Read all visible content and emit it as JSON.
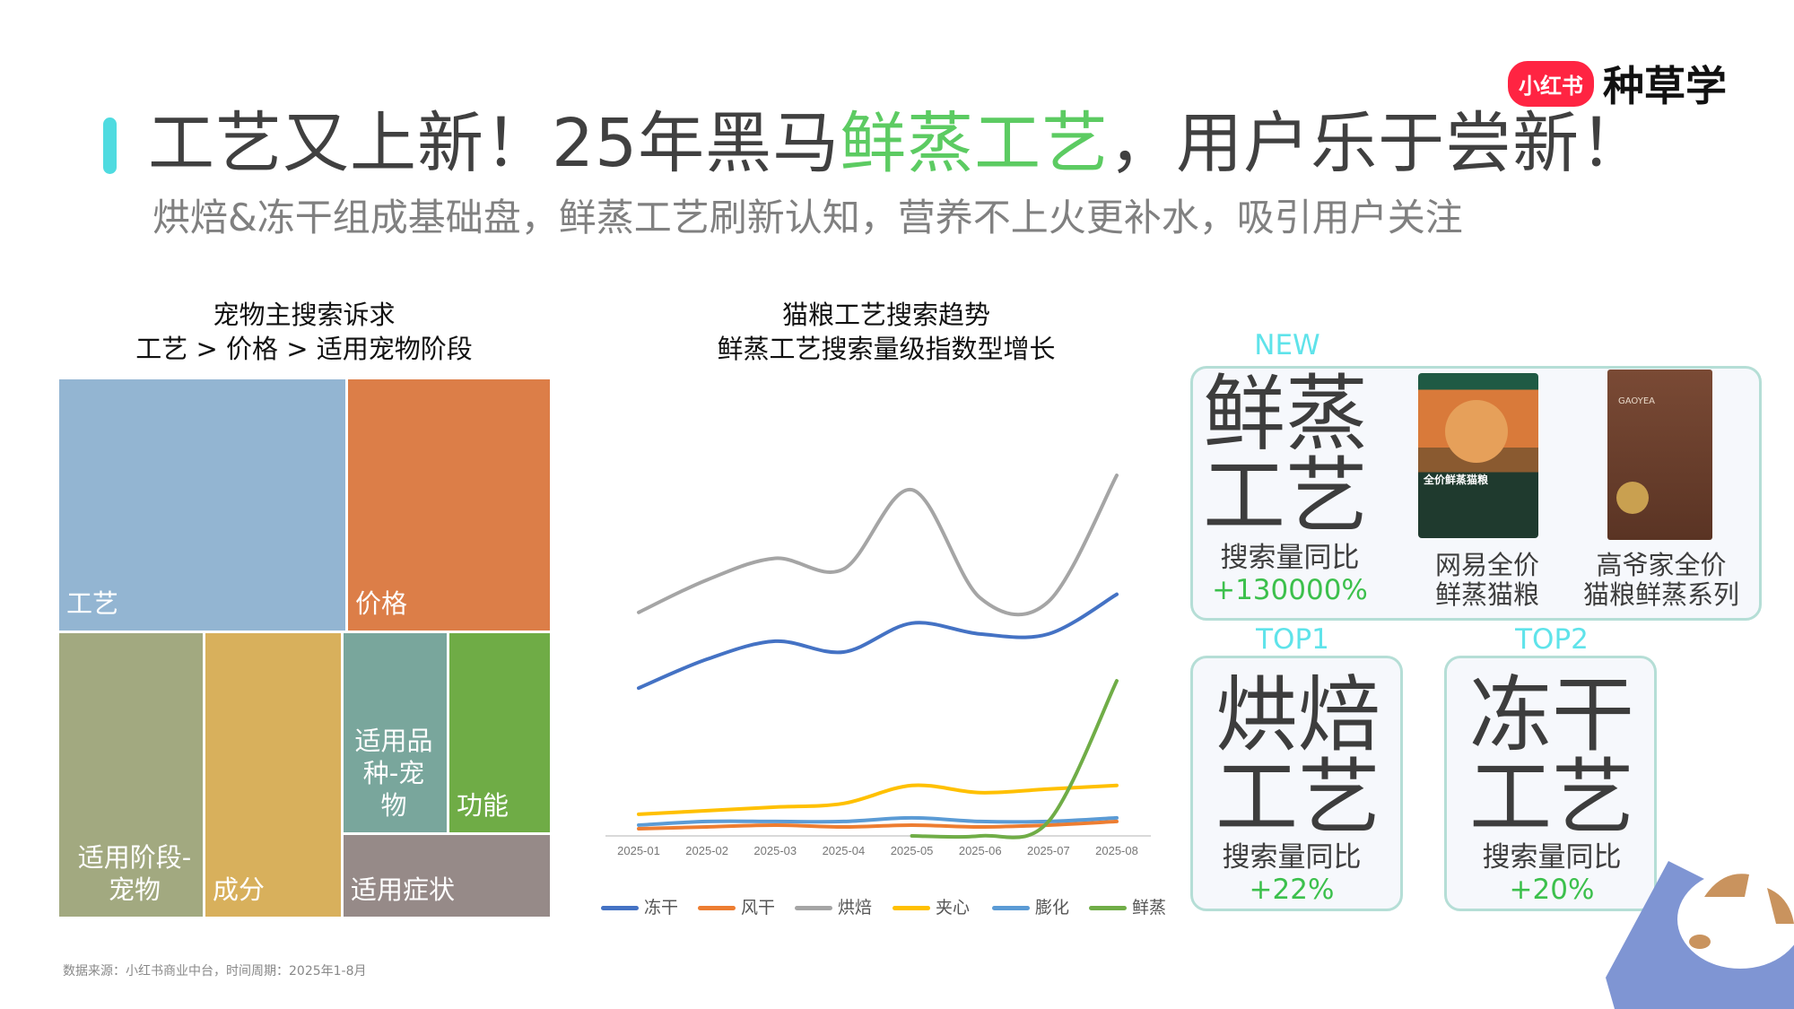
{
  "header": {
    "title_pre": "工艺又上新！25年黑马",
    "title_highlight": "鲜蒸工艺",
    "title_post": "，用户乐于尝新！",
    "subtitle": "烘焙&冻干组成基础盘，鲜蒸工艺刷新认知，营养不上火更补水，吸引用户关注",
    "accent_color": "#4fdbe0",
    "highlight_color": "#5ccb62"
  },
  "logo": {
    "pill": "小红书",
    "text": "种草学"
  },
  "treemap": {
    "title_line1": "宠物主搜索诉求",
    "title_line2": "工艺 > 价格 > 适用宠物阶段"
  },
  "linechart": {
    "title_line1": "猫粮工艺搜索趋势",
    "title_line2": "鲜蒸工艺搜索量级指数型增长"
  },
  "chart_data": [
    {
      "type": "treemap",
      "title": "宠物主搜索诉求",
      "categories": [
        "工艺",
        "价格",
        "适用阶段-宠物",
        "成分",
        "适用品种-宠物",
        "功能",
        "适用症状"
      ],
      "values": [
        27.6,
        19.6,
        15.8,
        14.8,
        7.9,
        7.7,
        6.6
      ],
      "colors": [
        "#93b5d2",
        "#dc7e48",
        "#a2a980",
        "#d8b05c",
        "#79a69c",
        "#6fac46",
        "#968a88"
      ]
    },
    {
      "type": "line",
      "title": "猫粮工艺搜索趋势",
      "x": [
        "2025-01",
        "2025-02",
        "2025-03",
        "2025-04",
        "2025-05",
        "2025-06",
        "2025-07",
        "2025-08"
      ],
      "ylim": [
        0,
        100
      ],
      "grid": false,
      "legend": "bottom",
      "series": [
        {
          "name": "冻干",
          "color": "#4472c4",
          "values": [
            41,
            49,
            54,
            51,
            59,
            56,
            56,
            67
          ]
        },
        {
          "name": "风干",
          "color": "#ed7d31",
          "values": [
            2,
            2.5,
            3,
            2.5,
            3,
            2.5,
            3,
            4
          ]
        },
        {
          "name": "烘焙",
          "color": "#a5a5a5",
          "values": [
            62,
            71,
            77,
            74,
            96,
            66,
            65,
            100
          ]
        },
        {
          "name": "夹心",
          "color": "#ffc000",
          "values": [
            6,
            7,
            8,
            9,
            14,
            12,
            13,
            14
          ]
        },
        {
          "name": "膨化",
          "color": "#5b9bd5",
          "values": [
            3,
            4,
            4,
            4,
            5,
            4,
            4,
            5
          ]
        },
        {
          "name": "鲜蒸",
          "color": "#70ad47",
          "values": [
            null,
            null,
            null,
            null,
            0,
            0,
            4,
            43
          ]
        }
      ]
    }
  ],
  "new_panel": {
    "tag": "NEW",
    "big_line1": "鲜蒸",
    "big_line2": "工艺",
    "metric_label": "搜索量同比",
    "metric_value": "+130000%",
    "products": [
      {
        "caption_line1": "网易全价",
        "caption_line2": "鲜蒸猫粮",
        "bag_text": "全价鲜蒸猫粮"
      },
      {
        "caption_line1": "高爷家全价",
        "caption_line2": "猫粮鲜蒸系列",
        "bag_text": "GAOYEA"
      }
    ]
  },
  "top_panels": [
    {
      "tag": "TOP1",
      "big_line1": "烘焙",
      "big_line2": "工艺",
      "metric_label": "搜索量同比",
      "metric_value": "+22%"
    },
    {
      "tag": "TOP2",
      "big_line1": "冻干",
      "big_line2": "工艺",
      "metric_label": "搜索量同比",
      "metric_value": "+20%"
    }
  ],
  "footer": "数据来源：小红书商业中台，时间周期：2025年1-8月"
}
